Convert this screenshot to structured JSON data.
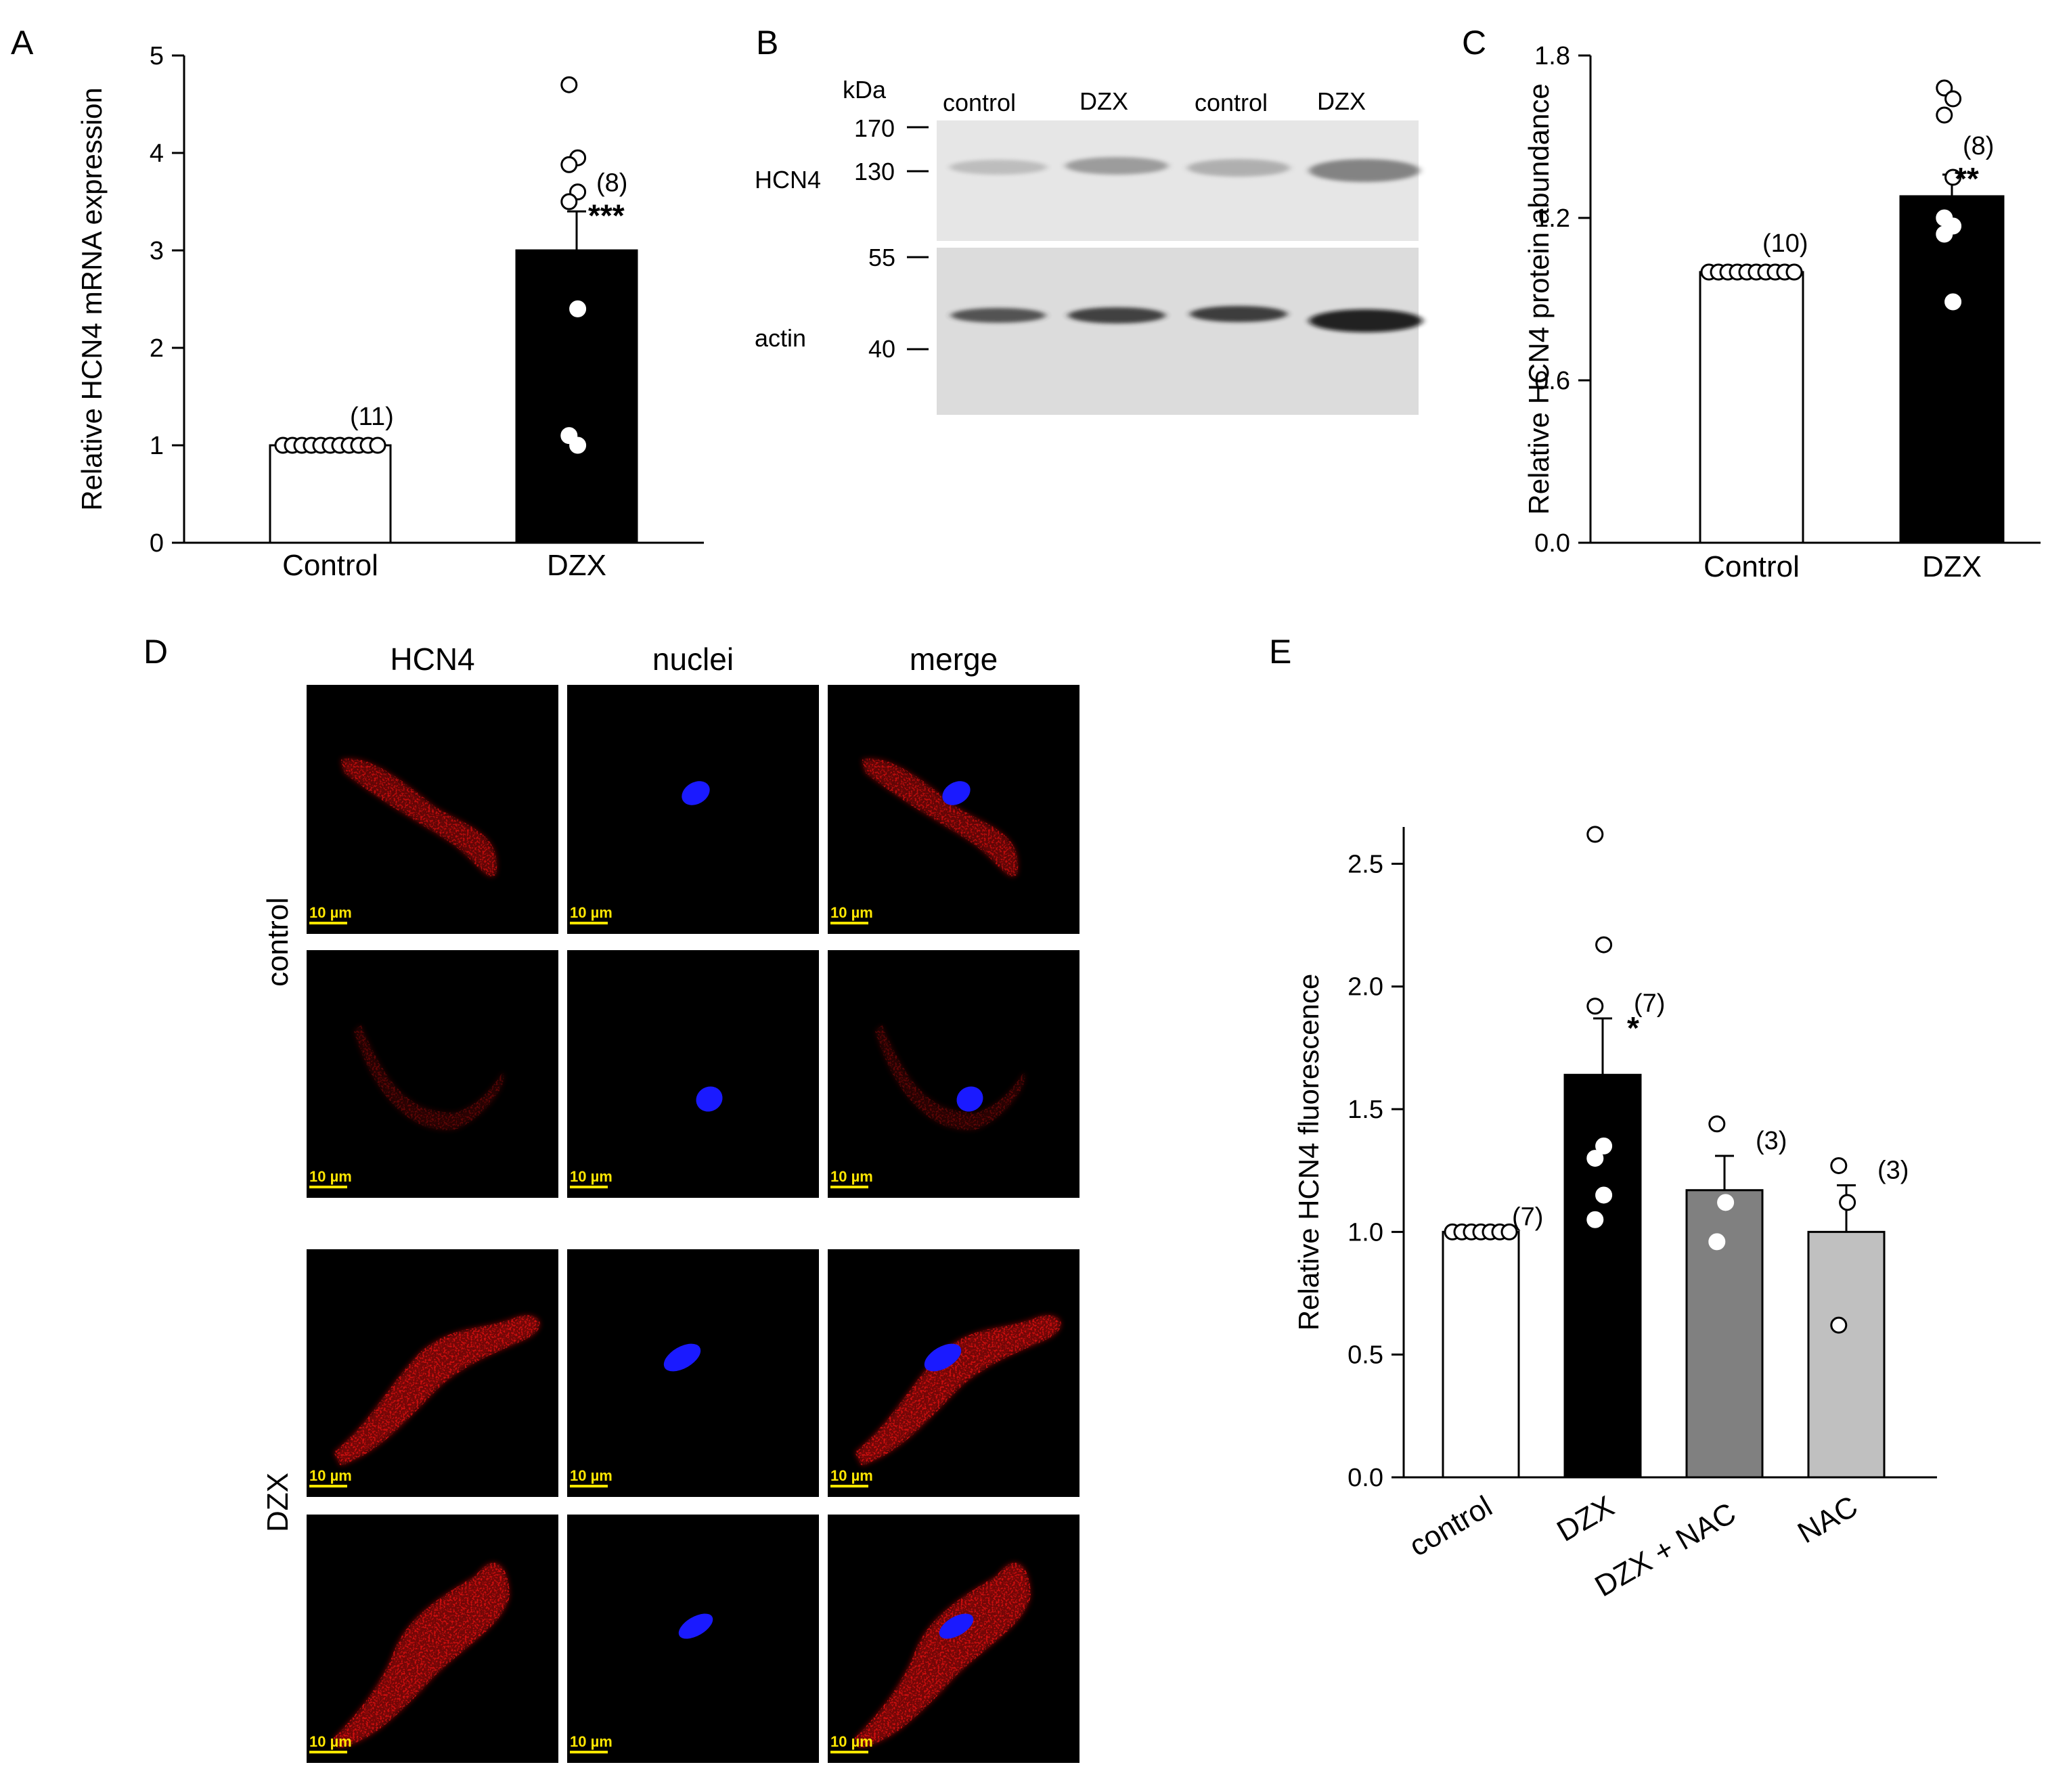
{
  "panels": {
    "A": "A",
    "B": "B",
    "C": "C",
    "D": "D",
    "E": "E"
  },
  "colors": {
    "white_bar": "#ffffff",
    "black_bar": "#000000",
    "dark_gray_bar": "#808080",
    "light_gray_bar": "#c0c0c0",
    "hcn4_stain": "#d01010",
    "nuclei_stain": "#1a1aff",
    "scale_bar": "#ffe600"
  },
  "chart_data": [
    {
      "id": "A",
      "type": "bar",
      "ylabel": "Relative HCN4 mRNA expression",
      "ylim": [
        0,
        5
      ],
      "yticks": [
        "0",
        "1",
        "2",
        "3",
        "4",
        "5"
      ],
      "categories": [
        "Control",
        "DZX"
      ],
      "values": [
        1.0,
        3.0
      ],
      "error": [
        0,
        0.4
      ],
      "n_labels": [
        "(11)",
        "(8)"
      ],
      "significance": [
        "",
        "***"
      ],
      "points": [
        [
          1,
          1,
          1,
          1,
          1,
          1,
          1,
          1,
          1,
          1,
          1
        ],
        [
          4.7,
          3.95,
          3.88,
          3.6,
          3.5,
          2.4,
          1.1,
          1.0
        ]
      ]
    },
    {
      "id": "C",
      "type": "bar",
      "ylabel": "Relative HCN4 protein abundance",
      "ylim": [
        0,
        1.8
      ],
      "yticks": [
        "0.0",
        "0.6",
        "1.2",
        "1.8"
      ],
      "categories": [
        "Control",
        "DZX"
      ],
      "values": [
        1.0,
        1.28
      ],
      "error": [
        0,
        0.08
      ],
      "n_labels": [
        "(10)",
        "(8)"
      ],
      "significance": [
        "",
        "**"
      ],
      "points": [
        [
          1,
          1,
          1,
          1,
          1,
          1,
          1,
          1,
          1,
          1
        ],
        [
          1.68,
          1.64,
          1.58,
          1.35,
          1.2,
          1.17,
          1.14,
          0.89
        ]
      ]
    },
    {
      "id": "E",
      "type": "bar",
      "ylabel": "Relative HCN4 fluorescence",
      "ylim": [
        0,
        2.5
      ],
      "yticks": [
        "0.0",
        "0.5",
        "1.0",
        "1.5",
        "2.0",
        "2.5"
      ],
      "categories": [
        "control",
        "DZX",
        "DZX + NAC",
        "NAC"
      ],
      "values": [
        1.0,
        1.64,
        1.17,
        1.0
      ],
      "error": [
        0,
        0.23,
        0.14,
        0.19
      ],
      "n_labels": [
        "(7)",
        "(7)",
        "(3)",
        "(3)"
      ],
      "significance": [
        "",
        "*",
        "",
        ""
      ],
      "points": [
        [
          1,
          1,
          1,
          1,
          1,
          1,
          1
        ],
        [
          2.62,
          2.17,
          1.92,
          1.35,
          1.3,
          1.15,
          1.05
        ],
        [
          1.44,
          1.12,
          0.96
        ],
        [
          1.27,
          1.12,
          0.62
        ]
      ]
    }
  ],
  "blot": {
    "kda_label": "kDa",
    "lanes": [
      "control",
      "DZX",
      "control",
      "DZX"
    ],
    "markers": [
      "170",
      "130",
      "55",
      "40"
    ],
    "proteins": [
      "HCN4",
      "actin"
    ]
  },
  "micro": {
    "columns": [
      "HCN4",
      "nuclei",
      "merge"
    ],
    "groups": [
      "control",
      "DZX"
    ],
    "scale_label": "10 µm"
  }
}
